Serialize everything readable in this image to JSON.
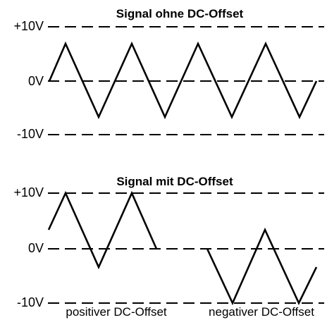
{
  "top": {
    "title": "Signal ohne DC-Offset",
    "labels": {
      "plus": "+10V",
      "zero": "0V",
      "minus": "-10V"
    },
    "signal": {
      "description_points_volts": [
        0,
        7,
        -7,
        7,
        -7,
        7,
        -7,
        7,
        -7,
        0
      ]
    }
  },
  "bottom": {
    "title": "Signal mit DC-Offset",
    "labels": {
      "plus": "+10V",
      "zero": "0V",
      "minus": "-10V"
    },
    "positive_caption": "positiver DC-Offset",
    "negative_caption": "negativer DC-Offset",
    "positive_signal_volts": [
      3,
      10,
      -3,
      10,
      0
    ],
    "negative_signal_volts": [
      0,
      -10,
      3,
      -10,
      -3
    ]
  }
}
